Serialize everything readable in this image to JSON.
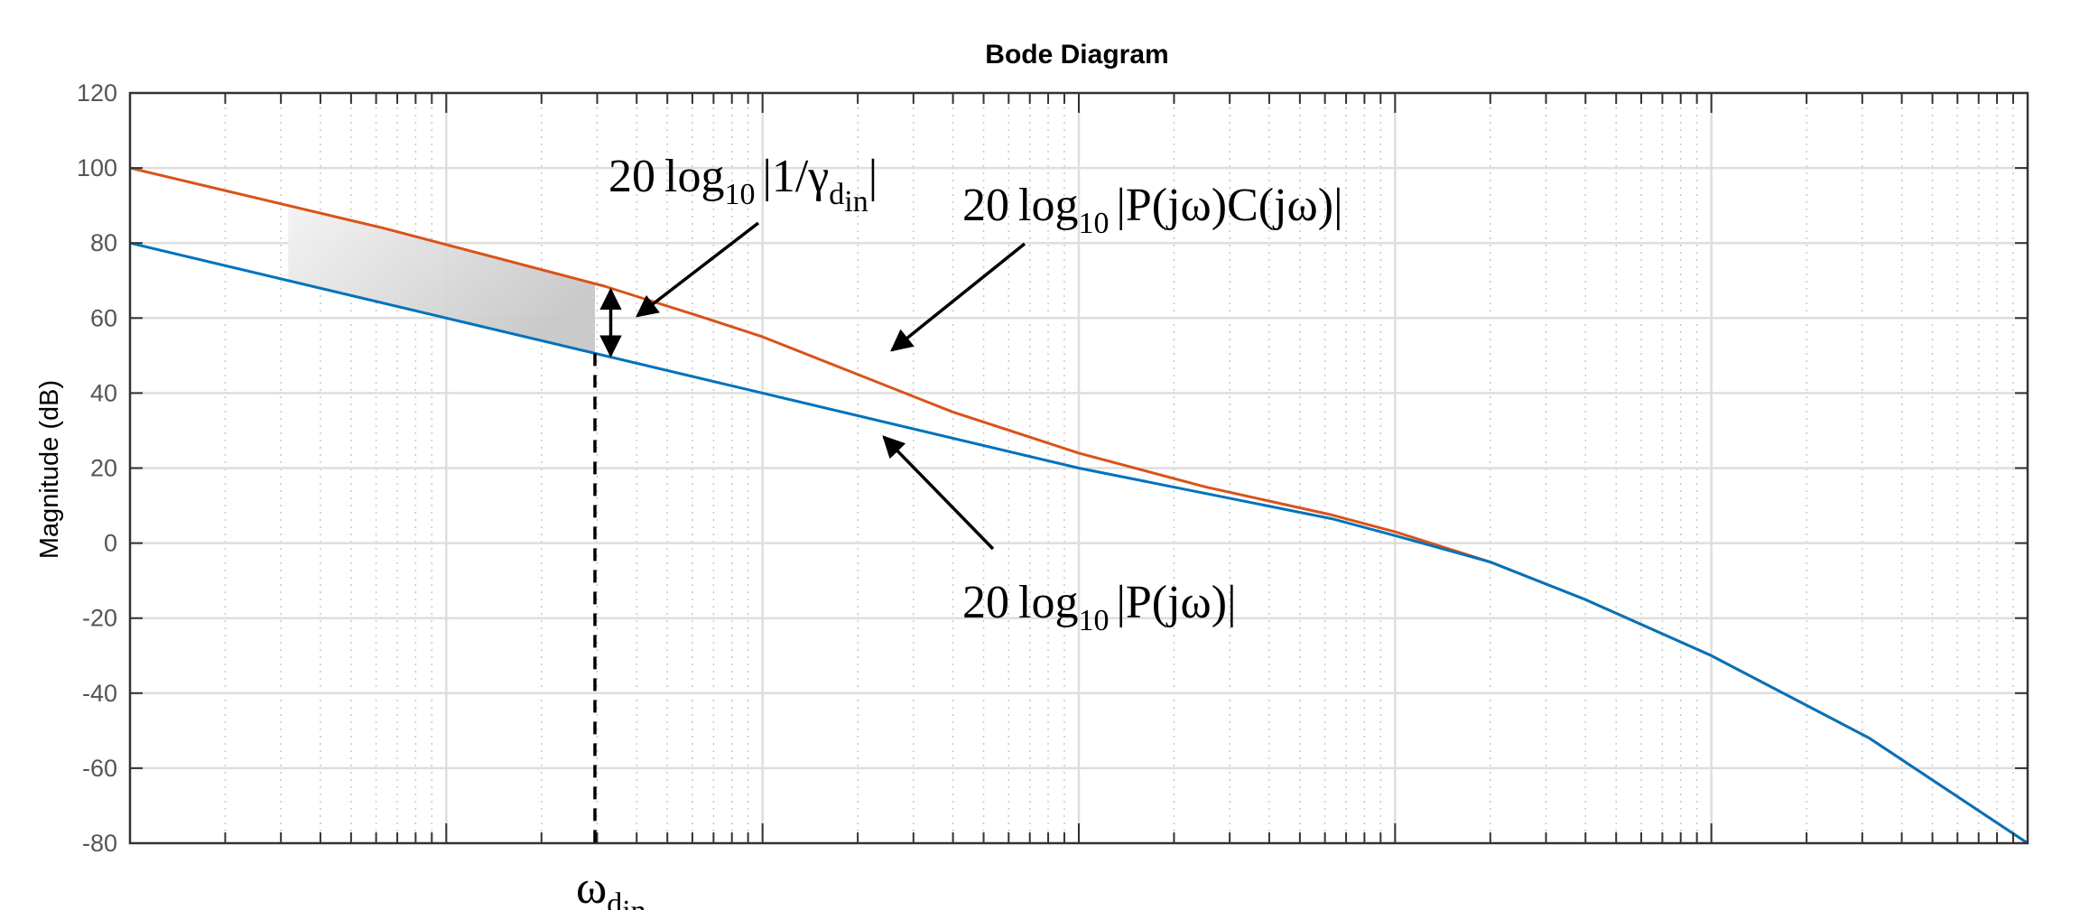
{
  "chart_data": {
    "type": "line",
    "title": "Bode Diagram",
    "ylabel": "Magnitude (dB)",
    "xlabel": "",
    "x_scale": "log",
    "xlim": [
      -1,
      5
    ],
    "ylim": [
      -80,
      120
    ],
    "yticks": [
      120,
      100,
      80,
      60,
      40,
      20,
      0,
      -20,
      -40,
      -60,
      -80
    ],
    "grid": true,
    "series": [
      {
        "name": "20 log10 |P(jω)C(jω)|",
        "color": "#D95319",
        "x": [
          -1.0,
          -0.6,
          -0.2,
          0.5,
          0.8,
          1.0,
          1.3,
          1.6,
          2.0,
          2.4,
          2.8,
          3.0,
          3.3,
          3.6,
          4.0,
          4.5,
          5.0
        ],
        "y": [
          100.0,
          92.0,
          84.0,
          68.5,
          60.5,
          55.0,
          45.0,
          35.0,
          24.0,
          15.0,
          7.5,
          3.0,
          -5.0,
          -15.0,
          -30.0,
          -52.0,
          -80.0
        ]
      },
      {
        "name": "20 log10 |P(jω)|",
        "color": "#0072BD",
        "x": [
          -1.0,
          0.0,
          1.0,
          2.0,
          2.8,
          3.0,
          3.3,
          3.6,
          4.0,
          4.5,
          5.0
        ],
        "y": [
          80.0,
          60.0,
          40.0,
          20.0,
          6.5,
          2.0,
          -5.0,
          -15.0,
          -30.0,
          -52.0,
          -80.0
        ]
      }
    ],
    "shaded_band": {
      "x_start": -0.5,
      "x_end": 0.47
    },
    "marker_x": 0.47,
    "gap_arrow_x": 0.52,
    "annotations": {
      "gamma_label": "20 log10 |1/γ_din|",
      "pc_label": "20 log10 |P(jω)C(jω)|",
      "p_label": "20 log10 |P(jω)|",
      "omega_label": "ω_din"
    }
  }
}
